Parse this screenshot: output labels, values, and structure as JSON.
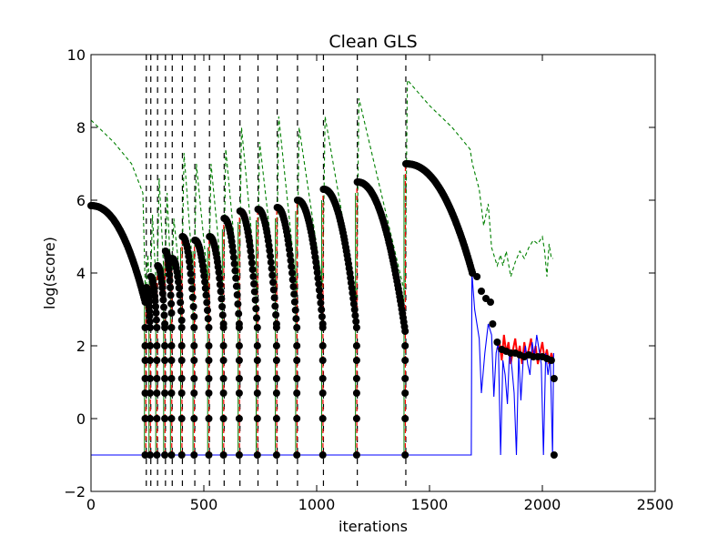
{
  "chart_data": {
    "type": "line",
    "title": "Clean GLS",
    "xlabel": "iterations",
    "ylabel": "log(score)",
    "xlim": [
      0,
      2500
    ],
    "ylim": [
      -2,
      10
    ],
    "xticks": [
      "0",
      "500",
      "1000",
      "1500",
      "2000",
      "2500"
    ],
    "yticks": [
      "−2",
      "0",
      "2",
      "4",
      "6",
      "8",
      "10"
    ],
    "grid": false,
    "legend": "none",
    "colors": {
      "black": "#000000",
      "green": "#008000",
      "red": "#ff0000",
      "blue": "#0000ff"
    },
    "restarts": [
      245,
      265,
      295,
      330,
      360,
      405,
      460,
      525,
      590,
      660,
      740,
      825,
      915,
      1030,
      1180,
      1395
    ],
    "segments": [
      {
        "x0": 0,
        "x1": 240,
        "y0": 5.85,
        "y1": 3.2
      },
      {
        "x0": 245,
        "x1": 262,
        "y0": 3.6,
        "y1": 2.5
      },
      {
        "x0": 265,
        "x1": 292,
        "y0": 3.9,
        "y1": 2.5
      },
      {
        "x0": 295,
        "x1": 327,
        "y0": 4.2,
        "y1": 2.6
      },
      {
        "x0": 330,
        "x1": 357,
        "y0": 4.6,
        "y1": 2.9
      },
      {
        "x0": 360,
        "x1": 402,
        "y0": 4.4,
        "y1": 2.7
      },
      {
        "x0": 405,
        "x1": 457,
        "y0": 5.0,
        "y1": 2.8
      },
      {
        "x0": 460,
        "x1": 522,
        "y0": 4.9,
        "y1": 2.5
      },
      {
        "x0": 525,
        "x1": 587,
        "y0": 5.0,
        "y1": 2.6
      },
      {
        "x0": 590,
        "x1": 657,
        "y0": 5.5,
        "y1": 2.6
      },
      {
        "x0": 660,
        "x1": 737,
        "y0": 5.7,
        "y1": 2.5
      },
      {
        "x0": 740,
        "x1": 822,
        "y0": 5.75,
        "y1": 2.6
      },
      {
        "x0": 825,
        "x1": 912,
        "y0": 5.8,
        "y1": 2.5
      },
      {
        "x0": 915,
        "x1": 1027,
        "y0": 6.0,
        "y1": 2.6
      },
      {
        "x0": 1030,
        "x1": 1177,
        "y0": 6.3,
        "y1": 2.5
      },
      {
        "x0": 1180,
        "x1": 1392,
        "y0": 6.5,
        "y1": 2.4
      },
      {
        "x0": 1395,
        "x1": 1690,
        "y0": 7.0,
        "y1": 4.0
      }
    ],
    "tail_black": [
      [
        1690,
        4.0
      ],
      [
        1710,
        3.9
      ],
      [
        1730,
        3.5
      ],
      [
        1750,
        3.3
      ],
      [
        1770,
        3.2
      ],
      [
        1780,
        2.6
      ],
      [
        1800,
        2.1
      ],
      [
        1820,
        1.9
      ],
      [
        1840,
        1.85
      ],
      [
        1860,
        1.8
      ],
      [
        1880,
        1.8
      ],
      [
        1900,
        1.75
      ],
      [
        1920,
        1.7
      ],
      [
        1940,
        1.75
      ],
      [
        1960,
        1.7
      ],
      [
        1980,
        1.7
      ],
      [
        2000,
        1.7
      ],
      [
        2020,
        1.65
      ],
      [
        2040,
        1.6
      ]
    ],
    "outliers_black": [
      [
        2052,
        1.1
      ],
      [
        2052,
        -1.0
      ]
    ],
    "green_dashed": [
      [
        0,
        8.2
      ],
      [
        100,
        7.6
      ],
      [
        180,
        7.0
      ],
      [
        230,
        6.2
      ],
      [
        242,
        3.2
      ],
      [
        252,
        4.5
      ],
      [
        262,
        3.2
      ],
      [
        272,
        5.6
      ],
      [
        292,
        3.3
      ],
      [
        302,
        6.6
      ],
      [
        327,
        3.5
      ],
      [
        337,
        6.2
      ],
      [
        357,
        3.5
      ],
      [
        367,
        5.5
      ],
      [
        402,
        3.4
      ],
      [
        412,
        7.3
      ],
      [
        457,
        3.6
      ],
      [
        467,
        7.0
      ],
      [
        522,
        3.5
      ],
      [
        532,
        7.0
      ],
      [
        587,
        3.4
      ],
      [
        597,
        7.4
      ],
      [
        657,
        3.4
      ],
      [
        667,
        8.0
      ],
      [
        737,
        3.4
      ],
      [
        747,
        7.6
      ],
      [
        822,
        3.5
      ],
      [
        832,
        8.3
      ],
      [
        912,
        3.5
      ],
      [
        922,
        8.0
      ],
      [
        1027,
        3.6
      ],
      [
        1037,
        8.3
      ],
      [
        1177,
        3.3
      ],
      [
        1187,
        8.8
      ],
      [
        1392,
        3.4
      ],
      [
        1402,
        9.3
      ],
      [
        1500,
        8.6
      ],
      [
        1600,
        8.0
      ],
      [
        1680,
        7.4
      ],
      [
        1690,
        7.0
      ],
      [
        1720,
        6.3
      ],
      [
        1740,
        5.3
      ],
      [
        1760,
        5.9
      ],
      [
        1775,
        4.7
      ],
      [
        1790,
        4.4
      ],
      [
        1800,
        4.2
      ],
      [
        1815,
        4.5
      ],
      [
        1825,
        4.2
      ],
      [
        1840,
        4.6
      ],
      [
        1860,
        3.9
      ],
      [
        1880,
        4.3
      ],
      [
        1900,
        4.6
      ],
      [
        1920,
        4.4
      ],
      [
        1940,
        4.7
      ],
      [
        1960,
        4.9
      ],
      [
        1980,
        4.8
      ],
      [
        2000,
        5.0
      ],
      [
        2010,
        4.6
      ],
      [
        2020,
        3.9
      ],
      [
        2030,
        4.8
      ],
      [
        2040,
        4.4
      ],
      [
        2048,
        4.4
      ]
    ],
    "blue_line": [
      [
        0,
        -1.0
      ],
      [
        1685,
        -1.0
      ],
      [
        1688,
        4.0
      ],
      [
        1700,
        3.0
      ],
      [
        1720,
        2.2
      ],
      [
        1730,
        0.7
      ],
      [
        1745,
        1.8
      ],
      [
        1760,
        2.6
      ],
      [
        1775,
        2.3
      ],
      [
        1785,
        0.6
      ],
      [
        1795,
        1.8
      ],
      [
        1805,
        2.1
      ],
      [
        1815,
        -1.0
      ],
      [
        1825,
        1.6
      ],
      [
        1835,
        1.2
      ],
      [
        1845,
        0.4
      ],
      [
        1855,
        1.9
      ],
      [
        1865,
        1.4
      ],
      [
        1875,
        0.7
      ],
      [
        1885,
        -1.0
      ],
      [
        1895,
        1.8
      ],
      [
        1905,
        0.5
      ],
      [
        1915,
        1.6
      ],
      [
        1925,
        2.0
      ],
      [
        1935,
        1.5
      ],
      [
        1945,
        1.2
      ],
      [
        1955,
        2.1
      ],
      [
        1965,
        1.7
      ],
      [
        1975,
        2.3
      ],
      [
        1985,
        1.9
      ],
      [
        1995,
        1.5
      ],
      [
        2005,
        -1.0
      ],
      [
        2015,
        1.8
      ],
      [
        2025,
        1.2
      ],
      [
        2035,
        1.7
      ],
      [
        2045,
        -1.0
      ],
      [
        2050,
        1.8
      ]
    ],
    "red_line": [
      [
        1800,
        1.9
      ],
      [
        1810,
        2.1
      ],
      [
        1820,
        1.6
      ],
      [
        1830,
        2.3
      ],
      [
        1840,
        1.8
      ],
      [
        1850,
        2.1
      ],
      [
        1860,
        1.5
      ],
      [
        1870,
        1.9
      ],
      [
        1880,
        2.2
      ],
      [
        1890,
        1.7
      ],
      [
        1900,
        2.0
      ],
      [
        1910,
        1.5
      ],
      [
        1920,
        2.1
      ],
      [
        1930,
        1.7
      ],
      [
        1940,
        1.9
      ],
      [
        1950,
        2.2
      ],
      [
        1960,
        1.6
      ],
      [
        1970,
        2.0
      ],
      [
        1980,
        1.5
      ],
      [
        1990,
        1.8
      ],
      [
        2000,
        2.1
      ],
      [
        2010,
        1.6
      ],
      [
        2020,
        1.9
      ],
      [
        2030,
        1.5
      ],
      [
        2040,
        1.8
      ],
      [
        2048,
        1.6
      ]
    ]
  }
}
